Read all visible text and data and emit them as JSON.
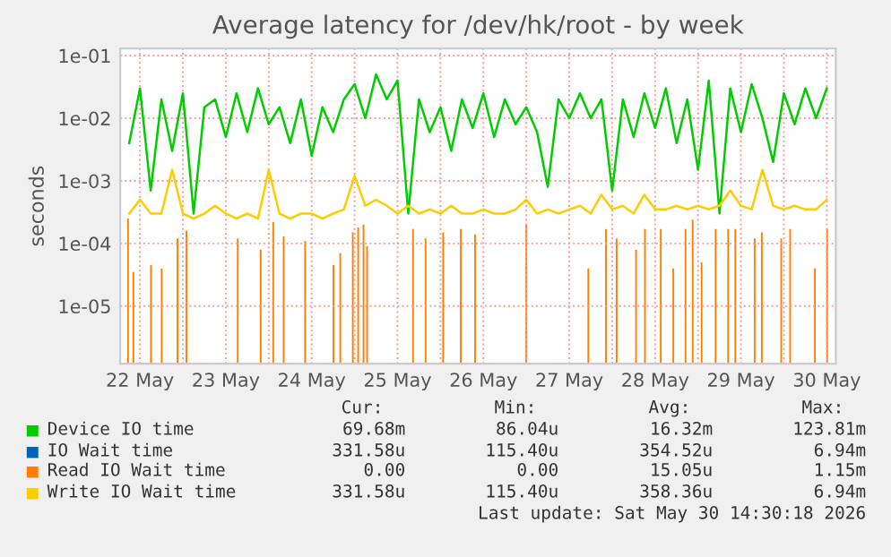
{
  "chart_data": {
    "type": "line",
    "title": "Average latency for /dev/hk/root - by week",
    "ylabel": "seconds",
    "x": [
      "2026-05-22T09:00",
      "2026-05-22T12:00",
      "2026-05-22T15:00",
      "2026-05-22T18:00",
      "2026-05-22T21:00",
      "2026-05-23T00:00",
      "2026-05-23T03:00",
      "2026-05-23T06:00",
      "2026-05-23T09:00",
      "2026-05-23T12:00",
      "2026-05-23T15:00",
      "2026-05-23T18:00",
      "2026-05-23T21:00",
      "2026-05-24T00:00",
      "2026-05-24T03:00",
      "2026-05-24T06:00",
      "2026-05-24T09:00",
      "2026-05-24T12:00",
      "2026-05-24T15:00",
      "2026-05-24T18:00",
      "2026-05-24T21:00",
      "2026-05-25T00:00",
      "2026-05-25T03:00",
      "2026-05-25T06:00",
      "2026-05-25T09:00",
      "2026-05-25T12:00",
      "2026-05-25T15:00",
      "2026-05-25T18:00",
      "2026-05-25T21:00",
      "2026-05-26T00:00",
      "2026-05-26T03:00",
      "2026-05-26T06:00",
      "2026-05-26T09:00",
      "2026-05-26T12:00",
      "2026-05-26T15:00",
      "2026-05-26T18:00",
      "2026-05-26T21:00",
      "2026-05-27T00:00",
      "2026-05-27T03:00",
      "2026-05-27T06:00",
      "2026-05-27T09:00",
      "2026-05-27T12:00",
      "2026-05-27T15:00",
      "2026-05-27T18:00",
      "2026-05-27T21:00",
      "2026-05-28T00:00",
      "2026-05-28T03:00",
      "2026-05-28T06:00",
      "2026-05-28T09:00",
      "2026-05-28T12:00",
      "2026-05-28T15:00",
      "2026-05-28T18:00",
      "2026-05-28T21:00",
      "2026-05-29T00:00",
      "2026-05-29T03:00",
      "2026-05-29T06:00",
      "2026-05-29T09:00",
      "2026-05-29T12:00",
      "2026-05-29T15:00",
      "2026-05-29T18:00",
      "2026-05-29T21:00",
      "2026-05-30T00:00",
      "2026-05-30T03:00",
      "2026-05-30T06:00",
      "2026-05-30T09:00",
      "2026-05-30T12:00"
    ],
    "series": [
      {
        "name": "Device IO time",
        "color": "#00cc00",
        "values": [
          0.004,
          0.03,
          0.0007,
          0.02,
          0.003,
          0.025,
          0.0003,
          0.015,
          0.02,
          0.005,
          0.025,
          0.006,
          0.03,
          0.008,
          0.015,
          0.004,
          0.02,
          0.0025,
          0.015,
          0.006,
          0.02,
          0.035,
          0.01,
          0.05,
          0.02,
          0.04,
          0.0003,
          0.02,
          0.006,
          0.015,
          0.003,
          0.02,
          0.007,
          0.025,
          0.005,
          0.02,
          0.008,
          0.015,
          0.006,
          0.0008,
          0.02,
          0.01,
          0.025,
          0.01,
          0.02,
          0.0007,
          0.02,
          0.005,
          0.025,
          0.007,
          0.03,
          0.004,
          0.02,
          0.0015,
          0.04,
          0.0003,
          0.03,
          0.006,
          0.035,
          0.01,
          0.002,
          0.025,
          0.008,
          0.03,
          0.01,
          0.03
        ]
      },
      {
        "name": "IO Wait time",
        "color": "#0066b3",
        "values": [
          null,
          null,
          null,
          null,
          null,
          null,
          null,
          null,
          null,
          null,
          null,
          null,
          null,
          null,
          null,
          null,
          null,
          null,
          null,
          null,
          null,
          null,
          null,
          null,
          null,
          null,
          null,
          null,
          null,
          null,
          null,
          null,
          null,
          null,
          null,
          null,
          null,
          null,
          null,
          null,
          null,
          null,
          null,
          null,
          null,
          null,
          null,
          null,
          null,
          null,
          null,
          null,
          null,
          null,
          null,
          null,
          null,
          null,
          null,
          null,
          null,
          null,
          null,
          null,
          null,
          null
        ]
      },
      {
        "name": "Read IO Wait time",
        "color": "#ff8000",
        "type": "bar",
        "x": [
          "2026-05-22T08:40",
          "2026-05-22T10:10",
          "2026-05-22T15:05",
          "2026-05-22T18:05",
          "2026-05-22T22:30",
          "2026-05-23T01:00",
          "2026-05-23T15:20",
          "2026-05-23T21:45",
          "2026-05-24T01:15",
          "2026-05-24T04:10",
          "2026-05-24T10:10",
          "2026-05-24T18:05",
          "2026-05-24T20:00",
          "2026-05-24T23:30",
          "2026-05-25T01:00",
          "2026-05-25T02:30",
          "2026-05-25T03:30",
          "2026-05-25T16:20",
          "2026-05-25T19:50",
          "2026-05-26T00:45",
          "2026-05-26T05:40",
          "2026-05-26T09:40",
          "2026-05-27T00:00",
          "2026-05-27T17:20",
          "2026-05-27T22:15",
          "2026-05-28T01:15",
          "2026-05-28T06:40",
          "2026-05-28T09:10",
          "2026-05-28T13:35",
          "2026-05-28T17:05",
          "2026-05-28T20:30",
          "2026-05-28T22:30",
          "2026-05-29T01:00",
          "2026-05-29T04:55",
          "2026-05-29T08:25",
          "2026-05-29T10:25",
          "2026-05-29T15:50",
          "2026-05-29T17:50",
          "2026-05-29T23:15",
          "2026-05-30T01:45",
          "2026-05-30T08:40",
          "2026-05-30T12:05"
        ],
        "values": [
          0.00025,
          3.5e-05,
          4.5e-05,
          4e-05,
          0.00012,
          0.00016,
          0.00012,
          8e-05,
          0.00022,
          0.00013,
          0.00011,
          4.5e-05,
          7e-05,
          0.00015,
          0.00018,
          0.0002,
          9e-05,
          0.00017,
          0.00012,
          0.00015,
          0.00017,
          0.00014,
          0.0002,
          4e-05,
          0.00017,
          0.00012,
          8e-05,
          0.00017,
          0.00017,
          4e-05,
          0.00017,
          0.00024,
          5e-05,
          0.00017,
          0.00017,
          0.00017,
          0.00012,
          0.00015,
          0.00012,
          0.00017,
          4e-05,
          0.00017
        ]
      },
      {
        "name": "Write IO Wait time",
        "color": "#ffcc00",
        "values": [
          0.0003,
          0.0005,
          0.0003,
          0.0003,
          0.0015,
          0.0003,
          0.00025,
          0.0003,
          0.0004,
          0.0003,
          0.00025,
          0.0003,
          0.00025,
          0.0015,
          0.0003,
          0.00025,
          0.0003,
          0.0003,
          0.00025,
          0.0003,
          0.00035,
          0.0012,
          0.0004,
          0.0005,
          0.0004,
          0.0003,
          0.0004,
          0.0003,
          0.00035,
          0.0003,
          0.0004,
          0.0003,
          0.0003,
          0.00035,
          0.0003,
          0.0003,
          0.00035,
          0.0005,
          0.0003,
          0.00035,
          0.0003,
          0.00035,
          0.0004,
          0.0003,
          0.0006,
          0.00035,
          0.0004,
          0.0003,
          0.0006,
          0.00035,
          0.00035,
          0.0004,
          0.00035,
          0.0004,
          0.00035,
          0.0004,
          0.0007,
          0.0004,
          0.00035,
          0.0015,
          0.0004,
          0.00035,
          0.0004,
          0.00035,
          0.00035,
          0.0005
        ]
      }
    ],
    "log": "y",
    "xlim": [
      "2026-05-22T06:30",
      "2026-05-30T14:30"
    ],
    "xticks": [
      {
        "value": "2026-05-22T12:00",
        "label": "22 May"
      },
      {
        "value": "2026-05-23T12:00",
        "label": "23 May"
      },
      {
        "value": "2026-05-24T12:00",
        "label": "24 May"
      },
      {
        "value": "2026-05-25T12:00",
        "label": "25 May"
      },
      {
        "value": "2026-05-26T12:00",
        "label": "26 May"
      },
      {
        "value": "2026-05-27T12:00",
        "label": "27 May"
      },
      {
        "value": "2026-05-28T12:00",
        "label": "28 May"
      },
      {
        "value": "2026-05-29T12:00",
        "label": "29 May"
      },
      {
        "value": "2026-05-30T12:00",
        "label": "30 May"
      },
      {
        "value": "2026-05-23T00:00",
        "label": null
      },
      {
        "value": "2026-05-24T00:00",
        "label": null
      },
      {
        "value": "2026-05-25T00:00",
        "label": null
      },
      {
        "value": "2026-05-26T00:00",
        "label": null
      },
      {
        "value": "2026-05-27T00:00",
        "label": null
      },
      {
        "value": "2026-05-28T00:00",
        "label": null
      },
      {
        "value": "2026-05-29T00:00",
        "label": null
      },
      {
        "value": "2026-05-30T00:00",
        "label": null
      }
    ],
    "ylim": [
      1.2e-06,
      0.13
    ],
    "yticks": [
      {
        "value": 1e-05,
        "label": "1e-05"
      },
      {
        "value": 0.0001,
        "label": "1e-04"
      },
      {
        "value": 0.001,
        "label": "1e-03"
      },
      {
        "value": 0.01,
        "label": "1e-02"
      },
      {
        "value": 0.1,
        "label": "1e-01"
      }
    ],
    "grid": true,
    "legend": "bottom",
    "marker": "none",
    "line_style": "solid",
    "annotations": [
      "Cur:",
      "Min:",
      "Avg:",
      "Max:",
      "69.68m",
      "86.04u",
      "16.32m",
      "123.81m",
      "331.58u",
      "115.40u",
      "354.52u",
      "6.94m",
      "0.00",
      "0.00",
      "15.05u",
      "1.15m",
      "331.58u",
      "115.40u",
      "358.36u",
      "6.94m",
      "Last update: Sat May 30 14:30:18 2026"
    ]
  }
}
